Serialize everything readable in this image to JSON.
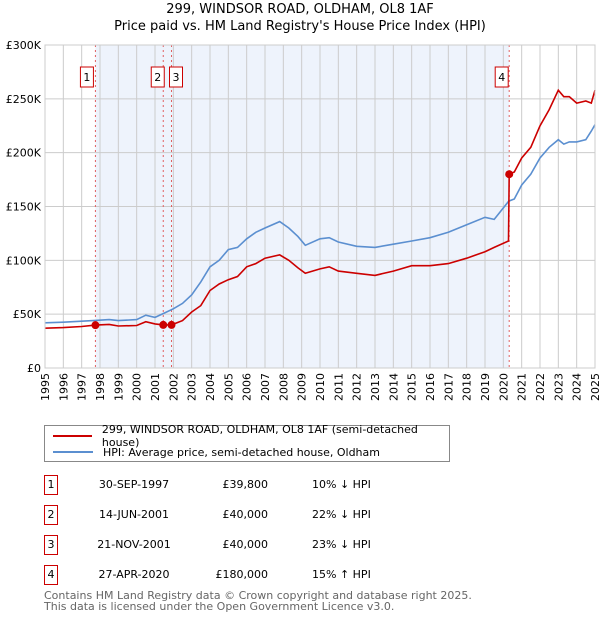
{
  "title": "299, WINDSOR ROAD, OLDHAM, OL8 1AF",
  "subtitle": "Price paid vs. HM Land Registry's House Price Index (HPI)",
  "chart_data": {
    "type": "line",
    "xlim": [
      1995,
      2025
    ],
    "ylim": [
      0,
      300000
    ],
    "x_ticks": [
      "1995",
      "1996",
      "1997",
      "1998",
      "1999",
      "2000",
      "2001",
      "2002",
      "2003",
      "2004",
      "2005",
      "2006",
      "2007",
      "2008",
      "2009",
      "2010",
      "2011",
      "2012",
      "2013",
      "2014",
      "2015",
      "2016",
      "2017",
      "2018",
      "2019",
      "2020",
      "2021",
      "2022",
      "2023",
      "2024",
      "2025"
    ],
    "y_ticks": [
      {
        "v": 0,
        "label": "£0"
      },
      {
        "v": 50000,
        "label": "£50K"
      },
      {
        "v": 100000,
        "label": "£100K"
      },
      {
        "v": 150000,
        "label": "£150K"
      },
      {
        "v": 200000,
        "label": "£200K"
      },
      {
        "v": 250000,
        "label": "£250K"
      },
      {
        "v": 300000,
        "label": "£300K"
      }
    ],
    "grid": true,
    "shaded_range": [
      1997.75,
      2020.32
    ],
    "series": [
      {
        "name": "299, WINDSOR ROAD, OLDHAM, OL8 1AF (semi-detached house)",
        "color": "#cc0000",
        "x": [
          1995,
          1996,
          1997,
          1997.75,
          1998.5,
          1999,
          2000,
          2000.5,
          2001,
          2001.45,
          2001.9,
          2002.5,
          2003,
          2003.5,
          2004,
          2004.5,
          2005,
          2005.5,
          2006,
          2006.5,
          2007,
          2007.8,
          2008.3,
          2008.8,
          2009.2,
          2010,
          2010.5,
          2011,
          2012,
          2013,
          2014,
          2015,
          2016,
          2017,
          2018,
          2019,
          2019.5,
          2020.28,
          2020.32,
          2020.6,
          2021,
          2021.5,
          2022,
          2022.5,
          2023,
          2023.3,
          2023.6,
          2024,
          2024.5,
          2024.8,
          2025
        ],
        "y": [
          37000,
          37500,
          38500,
          39800,
          40500,
          39000,
          39500,
          43000,
          41000,
          40000,
          40000,
          44000,
          52000,
          58000,
          72000,
          78000,
          82000,
          85000,
          94000,
          97000,
          102000,
          105000,
          100000,
          93000,
          88000,
          92000,
          94000,
          90000,
          88000,
          86000,
          90000,
          95000,
          95000,
          97000,
          102000,
          108000,
          112000,
          118000,
          180000,
          182000,
          195000,
          205000,
          225000,
          240000,
          258000,
          252000,
          252000,
          246000,
          248000,
          246000,
          258000
        ]
      },
      {
        "name": "HPI: Average price, semi-detached house, Oldham",
        "color": "#5b8fd0",
        "x": [
          1995,
          1996,
          1997,
          1997.75,
          1998.5,
          1999,
          2000,
          2000.5,
          2001,
          2001.5,
          2002,
          2002.5,
          2003,
          2003.5,
          2004,
          2004.5,
          2005,
          2005.5,
          2006,
          2006.5,
          2007,
          2007.8,
          2008.3,
          2008.8,
          2009.2,
          2010,
          2010.5,
          2011,
          2012,
          2013,
          2014,
          2015,
          2016,
          2017,
          2018,
          2019,
          2019.5,
          2020.3,
          2020.6,
          2021,
          2021.5,
          2022,
          2022.5,
          2023,
          2023.3,
          2023.6,
          2024,
          2024.5,
          2024.8,
          2025
        ],
        "y": [
          42000,
          42500,
          43500,
          44200,
          45000,
          44000,
          45000,
          49000,
          47000,
          51000,
          55000,
          60000,
          68000,
          80000,
          94000,
          100000,
          110000,
          112000,
          120000,
          126000,
          130000,
          136000,
          130000,
          122000,
          114000,
          120000,
          121000,
          117000,
          113000,
          112000,
          115000,
          118000,
          121000,
          126000,
          133000,
          140000,
          138000,
          155000,
          157000,
          170000,
          180000,
          195000,
          205000,
          212000,
          208000,
          210000,
          210000,
          212000,
          220000,
          226000
        ]
      }
    ],
    "markers": [
      {
        "label": "1",
        "x": 1997.75,
        "y": 39800
      },
      {
        "label": "2",
        "x": 2001.45,
        "y": 40000
      },
      {
        "label": "3",
        "x": 2001.9,
        "y": 40000
      },
      {
        "label": "4",
        "x": 2020.32,
        "y": 180000
      }
    ]
  },
  "legend": {
    "red": "299, WINDSOR ROAD, OLDHAM, OL8 1AF (semi-detached house)",
    "blue": "HPI: Average price, semi-detached house, Oldham"
  },
  "transactions": [
    {
      "num": "1",
      "date": "30-SEP-1997",
      "price": "£39,800",
      "hpi": "10% ↓ HPI"
    },
    {
      "num": "2",
      "date": "14-JUN-2001",
      "price": "£40,000",
      "hpi": "22% ↓ HPI"
    },
    {
      "num": "3",
      "date": "21-NOV-2001",
      "price": "£40,000",
      "hpi": "23% ↓ HPI"
    },
    {
      "num": "4",
      "date": "27-APR-2020",
      "price": "£180,000",
      "hpi": "15% ↑ HPI"
    }
  ],
  "footer": {
    "line1": "Contains HM Land Registry data © Crown copyright and database right 2025.",
    "line2": "This data is licensed under the Open Government Licence v3.0."
  }
}
